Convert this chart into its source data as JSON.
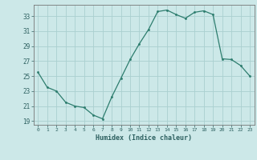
{
  "x": [
    0,
    1,
    2,
    3,
    4,
    5,
    6,
    7,
    8,
    9,
    10,
    11,
    12,
    13,
    14,
    15,
    16,
    17,
    18,
    19,
    20,
    21,
    22,
    23
  ],
  "y": [
    25.5,
    23.5,
    23.0,
    21.5,
    21.0,
    20.8,
    19.8,
    19.3,
    22.2,
    24.7,
    27.2,
    29.3,
    31.2,
    33.6,
    33.8,
    33.2,
    32.7,
    33.5,
    33.7,
    33.2,
    27.3,
    27.2,
    26.4,
    25.0
  ],
  "xlabel": "Humidex (Indice chaleur)",
  "xlim": [
    -0.5,
    23.5
  ],
  "ylim": [
    18.5,
    34.5
  ],
  "yticks": [
    19,
    21,
    23,
    25,
    27,
    29,
    31,
    33
  ],
  "xticks": [
    0,
    1,
    2,
    3,
    4,
    5,
    6,
    7,
    8,
    9,
    10,
    11,
    12,
    13,
    14,
    15,
    16,
    17,
    18,
    19,
    20,
    21,
    22,
    23
  ],
  "line_color": "#2d7d6e",
  "marker_color": "#2d7d6e",
  "bg_color": "#cce8e8",
  "grid_color": "#aad0d0",
  "axis_color": "#777777",
  "label_color": "#2d6060"
}
